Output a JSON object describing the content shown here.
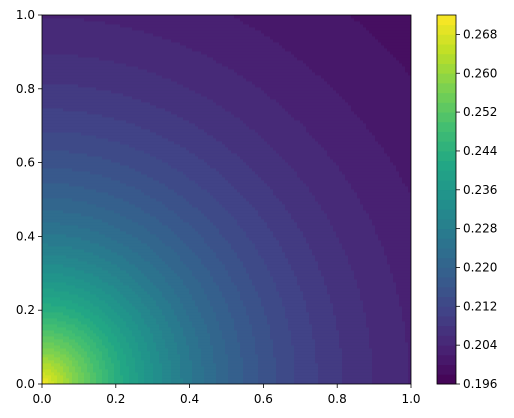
{
  "chart_data": {
    "type": "heatmap",
    "subtype": "filled-contour",
    "colormap": "viridis",
    "x_range": [
      0.0,
      1.0
    ],
    "y_range": [
      0.0,
      1.0
    ],
    "x_ticks": [
      "0.0",
      "0.2",
      "0.4",
      "0.6",
      "0.8",
      "1.0"
    ],
    "y_ticks": [
      "0.0",
      "0.2",
      "0.4",
      "0.6",
      "0.8",
      "1.0"
    ],
    "colorbar": {
      "range": [
        0.196,
        0.272
      ],
      "ticks": [
        "0.196",
        "0.204",
        "0.212",
        "0.220",
        "0.228",
        "0.236",
        "0.244",
        "0.252",
        "0.260",
        "0.268"
      ]
    },
    "field_samples": [
      {
        "x": 0.0,
        "y": 0.0,
        "value": 0.271
      },
      {
        "x": 0.1,
        "y": 0.0,
        "value": 0.265
      },
      {
        "x": 0.2,
        "y": 0.0,
        "value": 0.255
      },
      {
        "x": 0.3,
        "y": 0.0,
        "value": 0.242
      },
      {
        "x": 0.4,
        "y": 0.0,
        "value": 0.232
      },
      {
        "x": 0.5,
        "y": 0.0,
        "value": 0.225
      },
      {
        "x": 0.6,
        "y": 0.0,
        "value": 0.219
      },
      {
        "x": 0.8,
        "y": 0.0,
        "value": 0.213
      },
      {
        "x": 1.0,
        "y": 0.0,
        "value": 0.21
      },
      {
        "x": 0.0,
        "y": 0.4,
        "value": 0.232
      },
      {
        "x": 0.0,
        "y": 0.6,
        "value": 0.219
      },
      {
        "x": 0.0,
        "y": 0.8,
        "value": 0.213
      },
      {
        "x": 0.0,
        "y": 1.0,
        "value": 0.21
      },
      {
        "x": 0.2,
        "y": 0.2,
        "value": 0.24
      },
      {
        "x": 0.3,
        "y": 0.3,
        "value": 0.228
      },
      {
        "x": 0.5,
        "y": 0.5,
        "value": 0.212
      },
      {
        "x": 0.7,
        "y": 0.7,
        "value": 0.204
      },
      {
        "x": 1.0,
        "y": 1.0,
        "value": 0.196
      }
    ],
    "levels": 38,
    "grid": false,
    "legend": "colorbar-right"
  }
}
